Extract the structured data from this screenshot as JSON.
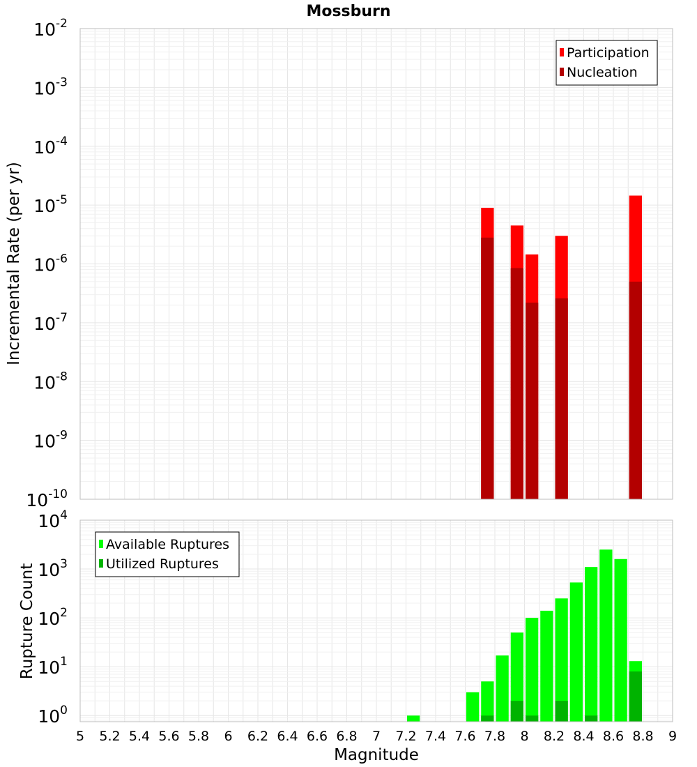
{
  "chart_data": [
    {
      "type": "bar",
      "title": "Mossburn",
      "xlabel": "",
      "ylabel": "Incremental Rate (per yr)",
      "xlim": [
        5,
        9
      ],
      "ylim": [
        1e-10,
        0.01
      ],
      "yscale": "log",
      "ytick_labels": [
        {
          "value": 1e-10,
          "base": "10",
          "exp": "-10"
        },
        {
          "value": 1e-09,
          "base": "10",
          "exp": "-9"
        },
        {
          "value": 1e-08,
          "base": "10",
          "exp": "-8"
        },
        {
          "value": 1e-07,
          "base": "10",
          "exp": "-7"
        },
        {
          "value": 1e-06,
          "base": "10",
          "exp": "-6"
        },
        {
          "value": 1e-05,
          "base": "10",
          "exp": "-5"
        },
        {
          "value": 0.0001,
          "base": "10",
          "exp": "-4"
        },
        {
          "value": 0.001,
          "base": "10",
          "exp": "-3"
        },
        {
          "value": 0.01,
          "base": "10",
          "exp": "-2"
        }
      ],
      "grid": true,
      "legend_position": "top-right",
      "series": [
        {
          "name": "Participation",
          "color": "#ff0000",
          "x": [
            7.75,
            7.95,
            8.05,
            8.25,
            8.75
          ],
          "values": [
            9e-06,
            4.5e-06,
            1.45e-06,
            3e-06,
            1.45e-05
          ]
        },
        {
          "name": "Nucleation",
          "color": "#b30000",
          "x": [
            7.75,
            7.95,
            8.05,
            8.25,
            8.75
          ],
          "values": [
            2.8e-06,
            8.5e-07,
            2.2e-07,
            2.6e-07,
            5e-07
          ]
        }
      ]
    },
    {
      "type": "bar",
      "title": "",
      "xlabel": "Magnitude",
      "ylabel": "Rupture Count",
      "xlim": [
        5,
        9
      ],
      "ylim": [
        0.75,
        10000
      ],
      "yscale": "log",
      "ytick_labels": [
        {
          "value": 1,
          "base": "10",
          "exp": "0"
        },
        {
          "value": 10,
          "base": "10",
          "exp": "1"
        },
        {
          "value": 100,
          "base": "10",
          "exp": "2"
        },
        {
          "value": 1000,
          "base": "10",
          "exp": "3"
        },
        {
          "value": 10000,
          "base": "10",
          "exp": "4"
        }
      ],
      "xtick_labels": [
        "5",
        "5.2",
        "5.4",
        "5.6",
        "5.8",
        "6",
        "6.2",
        "6.4",
        "6.6",
        "6.8",
        "7",
        "7.2",
        "7.4",
        "7.6",
        "7.8",
        "8",
        "8.2",
        "8.4",
        "8.6",
        "8.8",
        "9"
      ],
      "grid": true,
      "legend_position": "top-left",
      "series": [
        {
          "name": "Available Ruptures",
          "color": "#00ff00",
          "x": [
            7.25,
            7.65,
            7.75,
            7.85,
            7.95,
            8.05,
            8.15,
            8.25,
            8.35,
            8.45,
            8.55,
            8.65,
            8.75
          ],
          "values": [
            1,
            3,
            5,
            17,
            50,
            100,
            140,
            250,
            530,
            1100,
            2500,
            1600,
            13
          ]
        },
        {
          "name": "Utilized Ruptures",
          "color": "#00b300",
          "x": [
            7.75,
            7.95,
            8.05,
            8.25,
            8.45,
            8.75
          ],
          "values": [
            1,
            2,
            1,
            2,
            1,
            8
          ]
        }
      ]
    }
  ]
}
